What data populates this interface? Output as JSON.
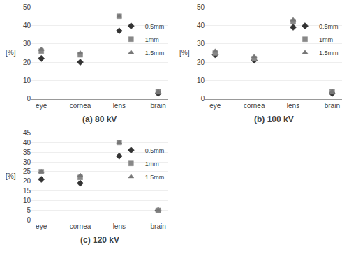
{
  "chart_data": [
    {
      "type": "scatter",
      "title": "(a) 80 kV",
      "categories": [
        "eye",
        "cornea",
        "lens",
        "brain"
      ],
      "series": [
        {
          "name": "0.5mm",
          "color": "#333333",
          "marker": "diamond",
          "values": [
            22,
            20,
            37,
            3
          ]
        },
        {
          "name": "1mm",
          "color": "#888888",
          "marker": "square",
          "values": [
            26,
            24,
            45,
            4
          ]
        },
        {
          "name": "1.5mm",
          "color": "#777777",
          "marker": "triangle-up",
          "values": [
            27,
            25,
            45,
            4
          ]
        }
      ],
      "ylabel": "[%]",
      "ylim": [
        0,
        50
      ],
      "yticks": [
        0,
        10,
        20,
        30,
        40,
        50
      ],
      "grid": true,
      "legend": "right"
    },
    {
      "type": "scatter",
      "title": "(b) 100 kV",
      "categories": [
        "eye",
        "cornea",
        "lens",
        "brain"
      ],
      "series": [
        {
          "name": "0.5mm",
          "color": "#333333",
          "marker": "diamond",
          "values": [
            24,
            21,
            39,
            3
          ]
        },
        {
          "name": "1mm",
          "color": "#888888",
          "marker": "square",
          "values": [
            25,
            22,
            42,
            4
          ]
        },
        {
          "name": "1.5mm",
          "color": "#777777",
          "marker": "triangle-up",
          "values": [
            26,
            23,
            43,
            4
          ]
        }
      ],
      "ylabel": "[%]",
      "ylim": [
        0,
        50
      ],
      "yticks": [
        0,
        10,
        20,
        30,
        40,
        50
      ],
      "grid": true,
      "legend": "right"
    },
    {
      "type": "scatter",
      "title": "(c) 120 kV",
      "categories": [
        "eye",
        "cornea",
        "lens",
        "brain"
      ],
      "series": [
        {
          "name": "0.5mm",
          "color": "#333333",
          "marker": "diamond",
          "values": [
            21,
            19,
            33,
            5
          ]
        },
        {
          "name": "1mm",
          "color": "#888888",
          "marker": "square",
          "values": [
            25,
            22,
            40,
            5
          ]
        },
        {
          "name": "1.5mm",
          "color": "#777777",
          "marker": "triangle-up",
          "values": [
            25,
            23,
            40,
            5
          ]
        }
      ],
      "ylabel": "[%]",
      "ylim": [
        0,
        45
      ],
      "yticks": [
        0,
        5,
        10,
        15,
        20,
        25,
        30,
        35,
        40,
        45
      ],
      "grid": true,
      "legend": "right"
    }
  ]
}
